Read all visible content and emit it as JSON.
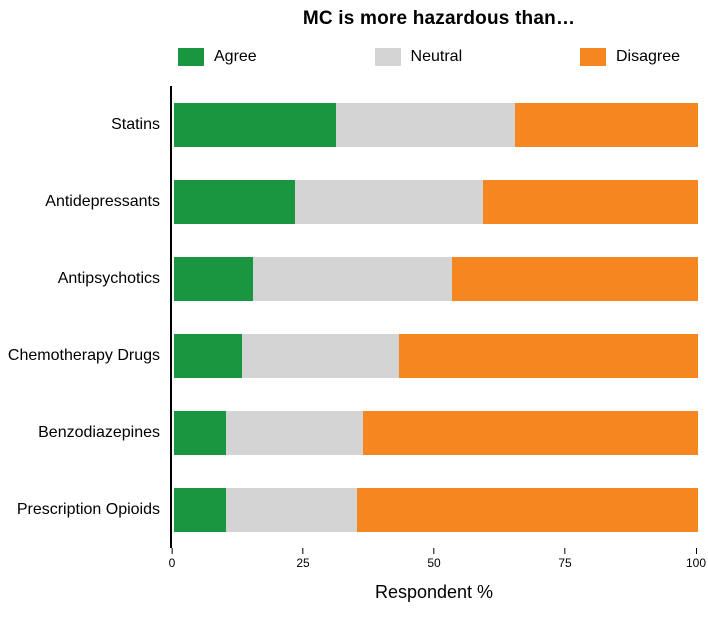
{
  "chart_data": {
    "type": "bar",
    "orientation": "horizontal",
    "stacked": true,
    "title": "MC is more hazardous than…",
    "xlabel": "Respondent %",
    "xlim": [
      0,
      100
    ],
    "xticks": [
      0,
      25,
      50,
      75,
      100
    ],
    "grid": false,
    "legend_position": "top",
    "categories": [
      "Statins",
      "Antidepressants",
      "Antipsychotics",
      "Chemotherapy Drugs",
      "Benzodiazepines",
      "Prescription Opioids"
    ],
    "series": [
      {
        "name": "Agree",
        "color": "#1a9641",
        "values": [
          31,
          23,
          15,
          13,
          10,
          10
        ]
      },
      {
        "name": "Neutral",
        "color": "#d4d4d4",
        "values": [
          34,
          36,
          38,
          30,
          26,
          25
        ]
      },
      {
        "name": "Disagree",
        "color": "#f6861f",
        "values": [
          35,
          41,
          47,
          57,
          64,
          65
        ]
      }
    ]
  }
}
